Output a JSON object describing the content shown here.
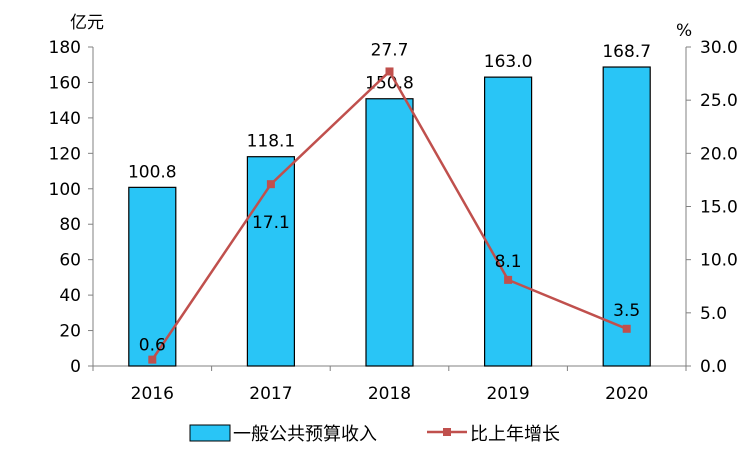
{
  "chart_data": {
    "type": "bar+line",
    "categories": [
      "2016",
      "2017",
      "2018",
      "2019",
      "2020"
    ],
    "series": [
      {
        "name": "一般公共预算收入",
        "type": "bar",
        "axis": "left",
        "color": "#29C5F6",
        "values": [
          100.8,
          118.1,
          150.8,
          163.0,
          168.7
        ],
        "labels": [
          "100.8",
          "118.1",
          "150.8",
          "163.0",
          "168.7"
        ]
      },
      {
        "name": "比上年增长",
        "type": "line",
        "axis": "right",
        "color": "#C0504D",
        "values": [
          0.6,
          17.1,
          27.7,
          8.1,
          3.5
        ],
        "labels": [
          "0.6",
          "17.1",
          "27.7",
          "8.1",
          "3.5"
        ]
      }
    ],
    "y_left": {
      "unit": "亿元",
      "range": [
        0,
        180
      ],
      "ticks": [
        "0",
        "20",
        "40",
        "60",
        "80",
        "100",
        "120",
        "140",
        "160",
        "180"
      ]
    },
    "y_right": {
      "unit": "%",
      "range": [
        0,
        30
      ],
      "ticks": [
        "0.0",
        "5.0",
        "10.0",
        "15.0",
        "20.0",
        "25.0",
        "30.0"
      ]
    },
    "grid": false,
    "legend_position": "bottom"
  }
}
